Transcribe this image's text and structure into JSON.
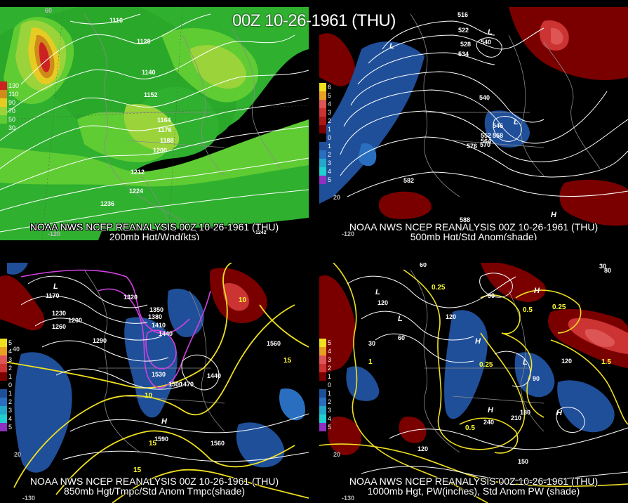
{
  "title": "00Z 10-26-1961 (THU)",
  "panels": [
    {
      "caption_line1": "NOAA NWS NCEP REANALYSIS 00Z 10-26-1961 (THU)",
      "caption_line2": "200mb Hgt/Wnd(kts)",
      "legend": [
        {
          "label": "130",
          "color": "#cc2222"
        },
        {
          "label": "110",
          "color": "#d08a1a"
        },
        {
          "label": "90",
          "color": "#e6cc22"
        },
        {
          "label": "70",
          "color": "#9ad43a"
        },
        {
          "label": "50",
          "color": "#5fcc33"
        },
        {
          "label": "30",
          "color": "#2fb02f"
        }
      ],
      "contour_labels": [
        "1116",
        "1128",
        "1140",
        "1152",
        "1164",
        "1176",
        "1188",
        "1200",
        "1212",
        "1224",
        "1236",
        "1242"
      ],
      "axis_labels": [
        "-120",
        "60"
      ]
    },
    {
      "caption_line1": "NOAA NWS NCEP REANALYSIS 00Z 10-26-1961 (THU)",
      "caption_line2": "500mb Hgt/Std Anom(shade)",
      "legend": [
        {
          "label": "6",
          "color": "#f0e020"
        },
        {
          "label": "5",
          "color": "#e8a020"
        },
        {
          "label": "4",
          "color": "#dd5555"
        },
        {
          "label": "3",
          "color": "#cc3333"
        },
        {
          "label": "2",
          "color": "#aa1818"
        },
        {
          "label": "1",
          "color": "#7a0000"
        },
        {
          "label": "0",
          "color": "#000000"
        },
        {
          "label": "1",
          "color": "#1f4f99"
        },
        {
          "label": "2",
          "color": "#2a6fbf"
        },
        {
          "label": "3",
          "color": "#22a8c8"
        },
        {
          "label": "4",
          "color": "#20d0d0"
        },
        {
          "label": "5",
          "color": "#9030c0"
        }
      ],
      "contour_labels": [
        "516",
        "522",
        "528",
        "534",
        "540",
        "546",
        "552",
        "558",
        "564",
        "570",
        "576",
        "582",
        "588"
      ],
      "symbol_labels": [
        "L",
        "L",
        "L",
        "H"
      ],
      "axis_labels": [
        "-120",
        "20"
      ]
    },
    {
      "caption_line1": "NOAA NWS NCEP REANALYSIS 00Z 10-26-1961 (THU)",
      "caption_line2": "850mb Hgt/Tmpc/Std Anom Tmpc(shade)",
      "legend": [
        {
          "label": "5",
          "color": "#f0e020"
        },
        {
          "label": "4",
          "color": "#e8a020"
        },
        {
          "label": "3",
          "color": "#dd5555"
        },
        {
          "label": "2",
          "color": "#cc3333"
        },
        {
          "label": "1",
          "color": "#7a0000"
        },
        {
          "label": "0",
          "color": "#000000"
        },
        {
          "label": "1",
          "color": "#1f4f99"
        },
        {
          "label": "2",
          "color": "#2a6fbf"
        },
        {
          "label": "3",
          "color": "#22a8c8"
        },
        {
          "label": "4",
          "color": "#20d0d0"
        },
        {
          "label": "5",
          "color": "#9030c0"
        }
      ],
      "contour_labels": [
        "1170",
        "1230",
        "1260",
        "1200",
        "1290",
        "1320",
        "1350",
        "1380",
        "1410",
        "1440",
        "1470",
        "1500",
        "1530",
        "1560",
        "1590",
        "1440"
      ],
      "temp_labels": [
        "10",
        "15",
        "10",
        "15",
        "15"
      ],
      "symbol_labels": [
        "L",
        "H"
      ],
      "axis_labels": [
        "-130",
        "20",
        "40"
      ]
    },
    {
      "caption_line1": "NOAA NWS NCEP REANALYSIS 00Z 10-26-1961 (THU)",
      "caption_line2": "1000mb Hgt, PW(inches), Std Anom PW (shade)",
      "legend": [
        {
          "label": "5",
          "color": "#f0e020"
        },
        {
          "label": "4",
          "color": "#e8a020"
        },
        {
          "label": "3",
          "color": "#dd5555"
        },
        {
          "label": "2",
          "color": "#cc3333"
        },
        {
          "label": "1",
          "color": "#7a0000"
        },
        {
          "label": "0",
          "color": "#000000"
        },
        {
          "label": "1",
          "color": "#1f4f99"
        },
        {
          "label": "2",
          "color": "#2a6fbf"
        },
        {
          "label": "3",
          "color": "#22a8c8"
        },
        {
          "label": "4",
          "color": "#20d0d0"
        },
        {
          "label": "5",
          "color": "#9030c0"
        }
      ],
      "contour_labels": [
        "60",
        "120",
        "30",
        "60",
        "90",
        "120",
        "180",
        "210",
        "240",
        "150",
        "120",
        "30",
        "80",
        "90",
        "120"
      ],
      "pw_labels": [
        "0.25",
        "0.5",
        "0.25",
        "0.25",
        "1",
        "0.5",
        "1.5"
      ],
      "symbol_labels": [
        "L",
        "L",
        "H",
        "H",
        "L",
        "H",
        "H"
      ],
      "axis_labels": [
        "-130",
        "20"
      ]
    }
  ]
}
